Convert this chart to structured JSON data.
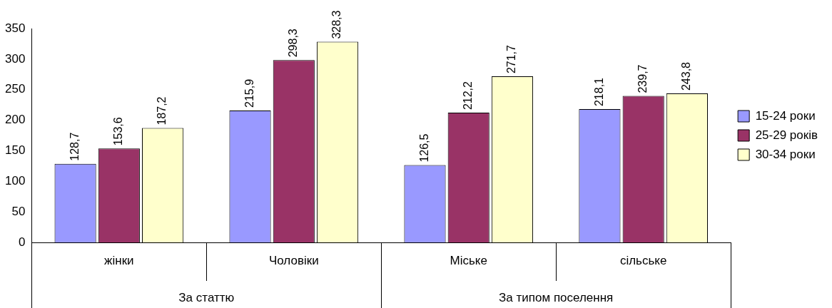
{
  "chart_data": {
    "type": "bar",
    "categories": [
      "жінки",
      "Чоловіки",
      "Міське",
      "сільське"
    ],
    "series": [
      {
        "name": "15-24 роки",
        "color": "#9999ff",
        "values": [
          128.7,
          215.9,
          126.5,
          218.1
        ],
        "value_labels": [
          "128,7",
          "215,9",
          "126,5",
          "218,1"
        ]
      },
      {
        "name": "25-29 років",
        "color": "#993366",
        "values": [
          153.6,
          298.3,
          212.2,
          239.7
        ],
        "value_labels": [
          "153,6",
          "298,3",
          "212,2",
          "239,7"
        ]
      },
      {
        "name": "30-34 роки",
        "color": "#ffffcc",
        "values": [
          187.2,
          328.3,
          271.7,
          243.8
        ],
        "value_labels": [
          "187,2",
          "328,3",
          "271,7",
          "243,8"
        ]
      }
    ],
    "ylim": [
      0,
      350
    ],
    "yticks": [
      0,
      50,
      100,
      150,
      200,
      250,
      300,
      350
    ],
    "grid": false,
    "legend": "right",
    "annotations": [
      "За статтю",
      "За типом поселення"
    ]
  }
}
